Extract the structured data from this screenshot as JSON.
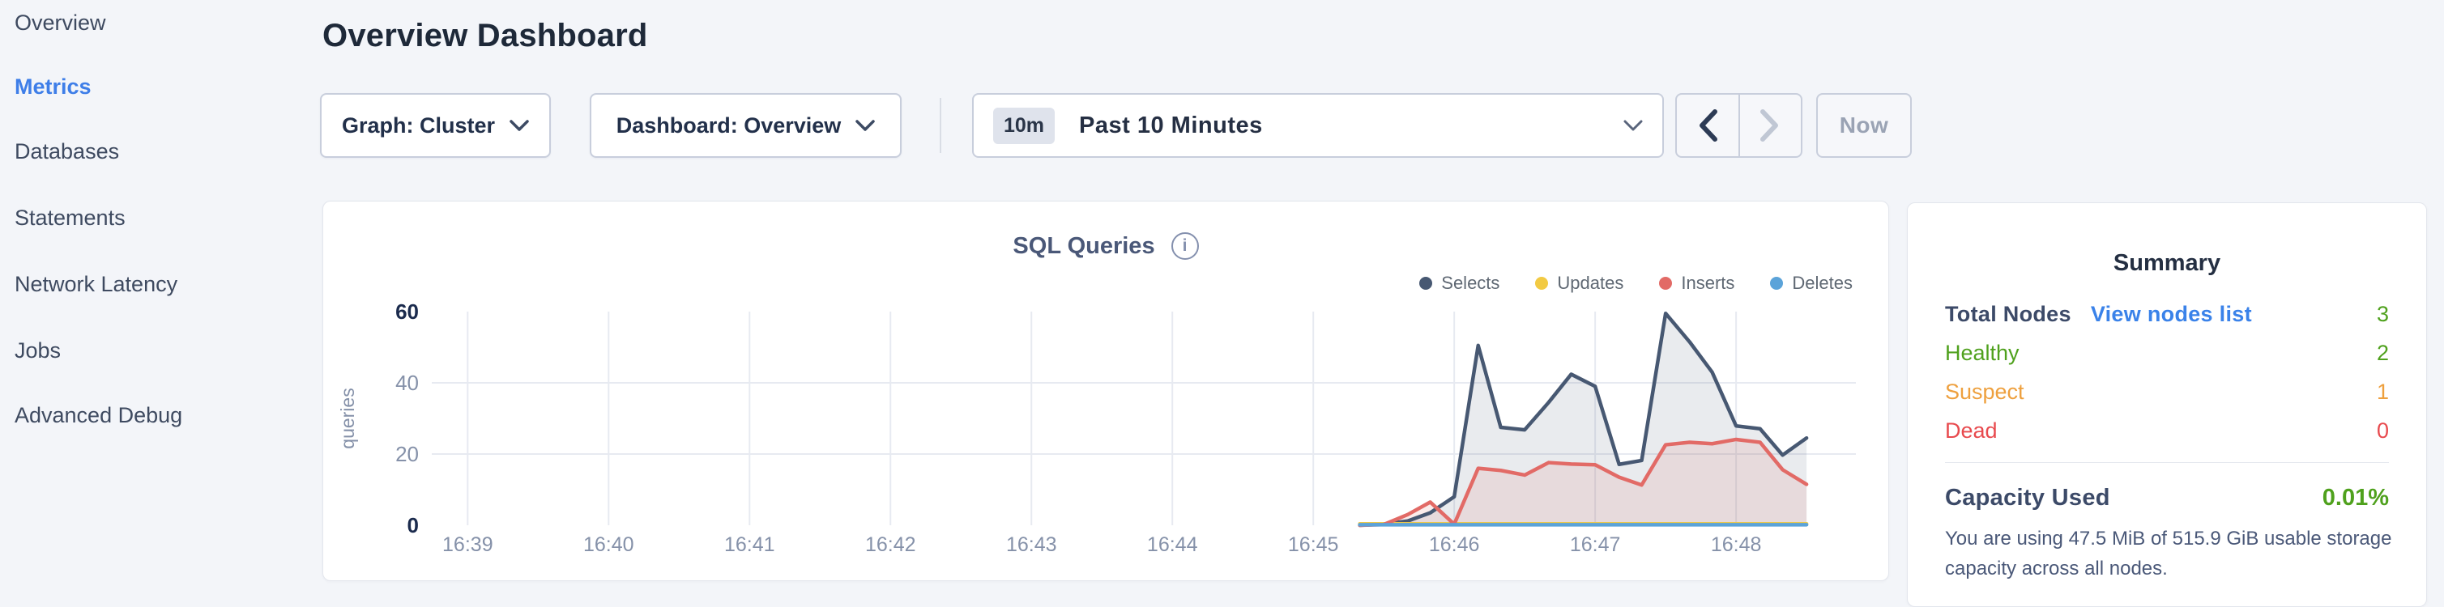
{
  "header": {
    "title": "Overview Dashboard"
  },
  "sidebar": {
    "items": [
      {
        "label": "Overview",
        "active": false
      },
      {
        "label": "Metrics",
        "active": true
      },
      {
        "label": "Databases",
        "active": false
      },
      {
        "label": "Statements",
        "active": false
      },
      {
        "label": "Network Latency",
        "active": false
      },
      {
        "label": "Jobs",
        "active": false
      },
      {
        "label": "Advanced Debug",
        "active": false
      }
    ]
  },
  "toolbar": {
    "graph_dropdown": {
      "display": "Graph: Cluster"
    },
    "dashboard_dropdown": {
      "display": "Dashboard: Overview"
    },
    "time_selector": {
      "badge": "10m",
      "label": "Past 10 Minutes"
    },
    "prev_label": "previous time range",
    "next_label": "next time range",
    "now_label": "Now"
  },
  "chart_data": {
    "type": "area",
    "title": "SQL Queries",
    "ylabel": "queries",
    "ylim": [
      0,
      60
    ],
    "xlim": [
      38.82,
      48.85
    ],
    "grid": true,
    "legend_position": "top-right",
    "x_unit": "minutes after 16:00",
    "x_ticks": [
      {
        "t": 39,
        "label": "16:39"
      },
      {
        "t": 40,
        "label": "16:40"
      },
      {
        "t": 41,
        "label": "16:41"
      },
      {
        "t": 42,
        "label": "16:42"
      },
      {
        "t": 43,
        "label": "16:43"
      },
      {
        "t": 44,
        "label": "16:44"
      },
      {
        "t": 45,
        "label": "16:45"
      },
      {
        "t": 46,
        "label": "16:46"
      },
      {
        "t": 47,
        "label": "16:47"
      },
      {
        "t": 48,
        "label": "16:48"
      }
    ],
    "y_ticks": [
      0,
      20,
      40,
      60
    ],
    "x": [
      45.33,
      45.5,
      45.67,
      45.83,
      46.0,
      46.17,
      46.33,
      46.5,
      46.67,
      46.83,
      47.0,
      47.17,
      47.33,
      47.5,
      47.67,
      47.83,
      48.0,
      48.17,
      48.33,
      48.5
    ],
    "series": [
      {
        "name": "Selects",
        "color": "#475872",
        "fill": "rgba(71,88,114,0.12)",
        "values": [
          0,
          0.3,
          1.2,
          3.5,
          8,
          50.5,
          27.5,
          26.8,
          34.5,
          42.4,
          39,
          17.1,
          18.2,
          59.5,
          51.5,
          43,
          27.9,
          27.1,
          19.7,
          24.5
        ]
      },
      {
        "name": "Updates",
        "color": "#f2ca43",
        "fill": null,
        "values": [
          0.4,
          0.4,
          0.4,
          0.4,
          0.4,
          0.4,
          0.4,
          0.4,
          0.4,
          0.4,
          0.4,
          0.4,
          0.4,
          0.4,
          0.4,
          0.4,
          0.4,
          0.4,
          0.4,
          0.4
        ]
      },
      {
        "name": "Inserts",
        "color": "#e26a66",
        "fill": "rgba(226,106,102,0.13)",
        "values": [
          0,
          0.2,
          3,
          6.5,
          0.3,
          16,
          15.4,
          14.1,
          17.6,
          17.2,
          17,
          13.5,
          11.3,
          22.6,
          23.3,
          22.9,
          24.1,
          23.3,
          15.6,
          11.5
        ]
      },
      {
        "name": "Deletes",
        "color": "#5ba3d9",
        "fill": null,
        "values": [
          0.15,
          0.15,
          0.15,
          0.15,
          0.15,
          0.15,
          0.15,
          0.15,
          0.15,
          0.15,
          0.15,
          0.15,
          0.15,
          0.15,
          0.15,
          0.15,
          0.15,
          0.15,
          0.15,
          0.15
        ]
      }
    ],
    "legend_order": [
      "Selects",
      "Updates",
      "Inserts",
      "Deletes"
    ]
  },
  "summary": {
    "title": "Summary",
    "rows": [
      {
        "id": "total-nodes",
        "label": "Total Nodes",
        "label_color": "#3c4a68",
        "label_bold": true,
        "link": "View nodes list",
        "value": "3",
        "value_color": "#4fa11d"
      },
      {
        "id": "healthy",
        "label": "Healthy",
        "label_color": "#4fa11d",
        "label_bold": false,
        "link": null,
        "value": "2",
        "value_color": "#4fa11d"
      },
      {
        "id": "suspect",
        "label": "Suspect",
        "label_color": "#eea03e",
        "label_bold": false,
        "link": null,
        "value": "1",
        "value_color": "#eea03e"
      },
      {
        "id": "dead",
        "label": "Dead",
        "label_color": "#e84a4e",
        "label_bold": false,
        "link": null,
        "value": "0",
        "value_color": "#e84a4e"
      }
    ],
    "capacity": {
      "label": "Capacity Used",
      "value": "0.01%",
      "value_color": "#4fa11d",
      "description": "You are using 47.5 MiB of 515.9 GiB usable storage capacity across all nodes."
    }
  },
  "colors": {
    "page_bg": "#f3f5f9",
    "accent_blue": "#3e7ee8",
    "grid_line": "#e7eaf1",
    "tick_muted": "#8591a9",
    "tick_bold": "#1b2b4d"
  }
}
